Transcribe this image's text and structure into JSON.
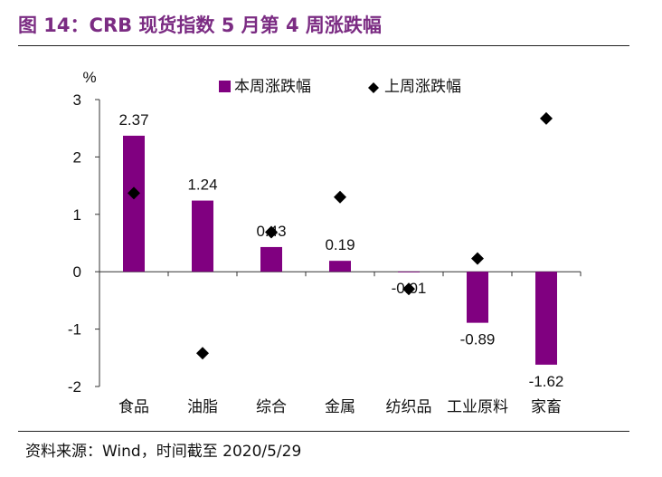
{
  "title": "图 14：CRB 现货指数 5 月第 4 周涨跌幅",
  "source": "资料来源：Wind，时间截至 2020/5/29",
  "colors": {
    "bar": "#800080",
    "marker": "#000000",
    "title": "#7b2c83"
  },
  "chart_data": {
    "type": "bar",
    "ylabel": "%",
    "ylim": [
      -2,
      3
    ],
    "yticks": [
      3,
      2,
      1,
      0,
      -1,
      -2
    ],
    "categories": [
      "食品",
      "油脂",
      "综合",
      "金属",
      "纺织品",
      "工业原料",
      "家畜"
    ],
    "series": [
      {
        "name": "本周涨跌幅",
        "kind": "bar",
        "values": [
          2.37,
          1.24,
          0.43,
          0.19,
          -0.01,
          -0.89,
          -1.62
        ]
      },
      {
        "name": "上周涨跌幅",
        "kind": "marker",
        "values": [
          1.37,
          -1.42,
          0.69,
          1.3,
          -0.3,
          0.23,
          2.67
        ]
      }
    ],
    "data_labels": [
      "2.37",
      "1.24",
      "0.43",
      "0.19",
      "-0.01",
      "-0.89",
      "-1.62"
    ],
    "legend": {
      "position": "top-right"
    }
  }
}
